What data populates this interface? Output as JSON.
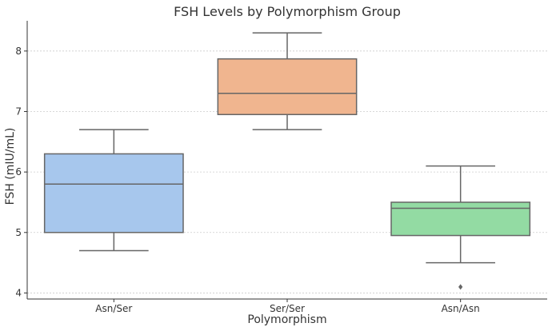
{
  "chart_data": {
    "type": "box",
    "title": "FSH Levels by Polymorphism Group",
    "xlabel": "Polymorphism",
    "ylabel": "FSH (mIU/mL)",
    "categories": [
      "Asn/Ser",
      "Ser/Ser",
      "Asn/Asn"
    ],
    "ylim": [
      3.9,
      8.5
    ],
    "yticks": [
      4,
      5,
      6,
      7,
      8
    ],
    "grid": "horizontal dashed",
    "boxes": [
      {
        "category": "Asn/Ser",
        "whisker_low": 4.7,
        "q1": 5.0,
        "median": 5.8,
        "q3": 6.3,
        "whisker_high": 6.7,
        "outliers": [],
        "color": "#a7c7ed"
      },
      {
        "category": "Ser/Ser",
        "whisker_low": 6.7,
        "q1": 6.95,
        "median": 7.3,
        "q3": 7.87,
        "whisker_high": 8.3,
        "outliers": [],
        "color": "#f0b58f"
      },
      {
        "category": "Asn/Asn",
        "whisker_low": 4.5,
        "q1": 4.95,
        "median": 5.4,
        "q3": 5.5,
        "whisker_high": 6.1,
        "outliers": [
          4.1
        ],
        "color": "#93dba3"
      }
    ]
  },
  "colors": {
    "line": "#666666",
    "axis": "#333333",
    "grid": "#cccccc"
  }
}
